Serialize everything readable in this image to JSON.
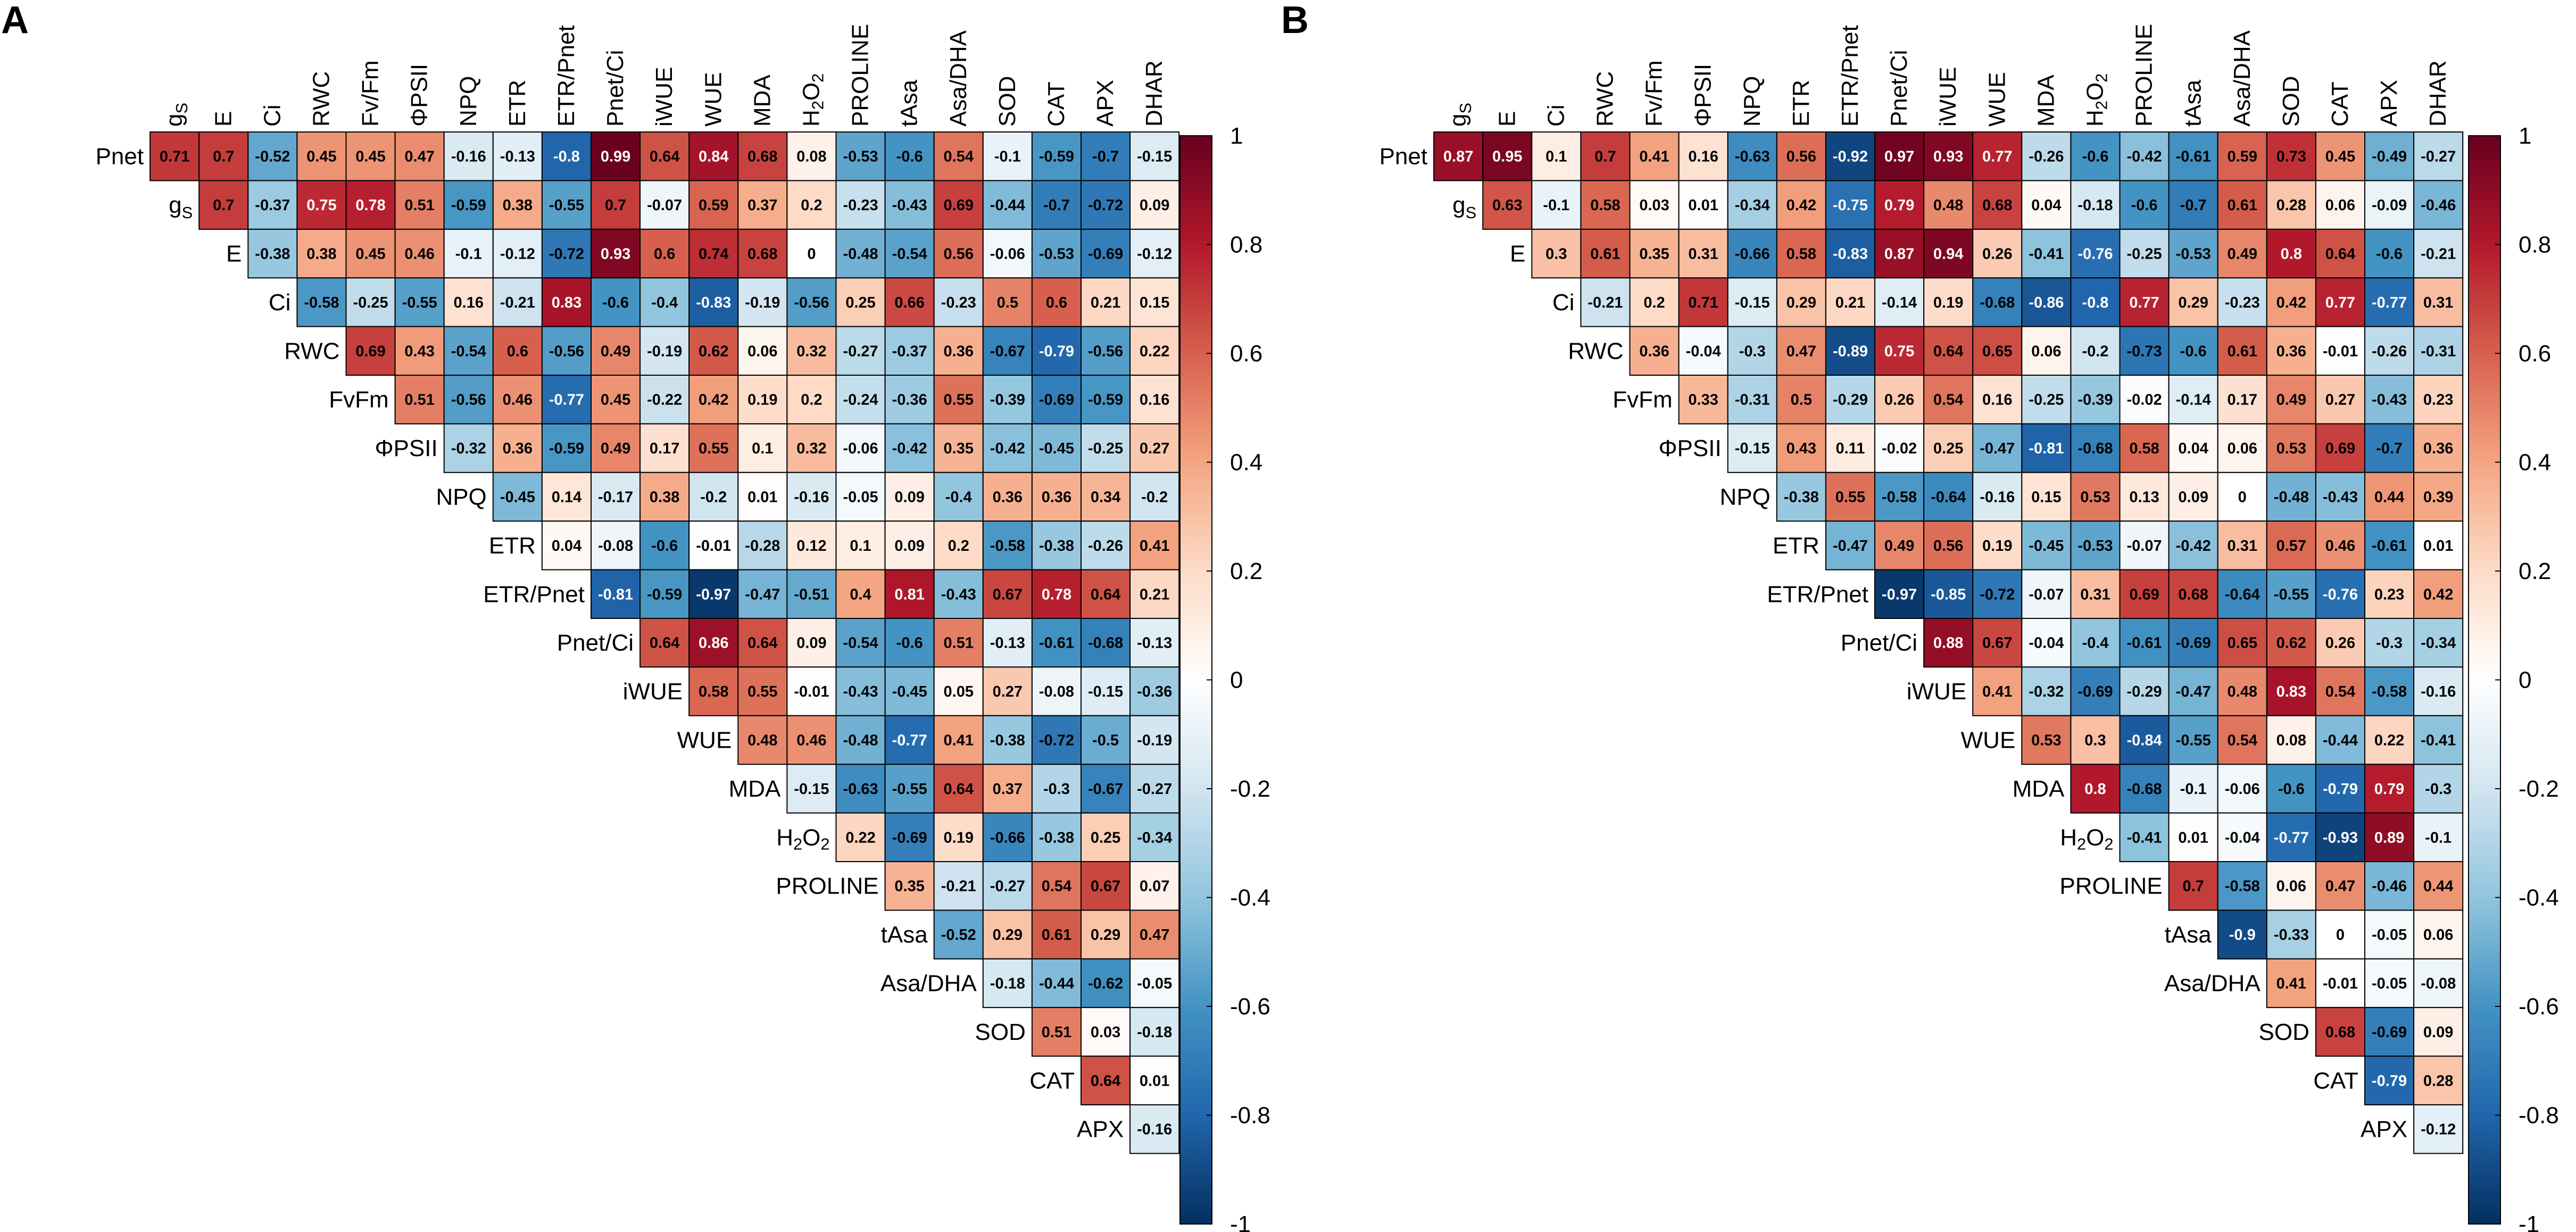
{
  "colors": {
    "negative": "#053061",
    "neutral": "#ffffff",
    "positive": "#67001f",
    "scale_stops": [
      "#053061",
      "#2166ac",
      "#4393c3",
      "#92c5de",
      "#d1e5f0",
      "#ffffff",
      "#fddbc7",
      "#f4a582",
      "#d6604d",
      "#b2182b",
      "#67001f"
    ]
  },
  "chart_data": [
    {
      "type": "heatmap",
      "panel_label": "A",
      "col_labels": [
        "g_S",
        "E",
        "Ci",
        "RWC",
        "Fv/Fm",
        "ΦPSII",
        "NPQ",
        "ETR",
        "ETR/Pnet",
        "Pnet/Ci",
        "iWUE",
        "WUE",
        "MDA",
        "H2O2",
        "PROLINE",
        "tAsa",
        "Asa/DHA",
        "SOD",
        "CAT",
        "APX",
        "DHAR"
      ],
      "row_labels": [
        "Pnet",
        "g_S",
        "E",
        "Ci",
        "RWC",
        "FvFm",
        "ΦPSII",
        "NPQ",
        "ETR",
        "ETR/Pnet",
        "Pnet/Ci",
        "iWUE",
        "WUE",
        "MDA",
        "H2O2",
        "PROLINE",
        "tAsa",
        "Asa/DHA",
        "SOD",
        "CAT",
        "APX"
      ],
      "values": [
        [
          0.71,
          0.7,
          -0.52,
          0.45,
          0.45,
          0.47,
          -0.16,
          -0.13,
          -0.8,
          0.99,
          0.64,
          0.84,
          0.68,
          0.08,
          -0.53,
          -0.6,
          0.54,
          -0.1,
          -0.59,
          -0.7,
          -0.15
        ],
        [
          0.7,
          -0.37,
          0.75,
          0.78,
          0.51,
          -0.59,
          0.38,
          -0.55,
          0.7,
          -0.07,
          0.59,
          0.37,
          0.2,
          -0.23,
          -0.43,
          0.69,
          -0.44,
          -0.7,
          -0.72,
          0.09
        ],
        [
          -0.38,
          0.38,
          0.45,
          0.46,
          -0.1,
          -0.12,
          -0.72,
          0.93,
          0.6,
          0.74,
          0.68,
          0,
          -0.48,
          -0.54,
          0.56,
          -0.06,
          -0.53,
          -0.69,
          -0.12
        ],
        [
          -0.58,
          -0.25,
          -0.55,
          0.16,
          -0.21,
          0.83,
          -0.6,
          -0.4,
          -0.83,
          -0.19,
          -0.56,
          0.25,
          0.66,
          -0.23,
          0.5,
          0.6,
          0.21,
          0.15
        ],
        [
          0.69,
          0.43,
          -0.54,
          0.6,
          -0.56,
          0.49,
          -0.19,
          0.62,
          0.06,
          0.32,
          -0.27,
          -0.37,
          0.36,
          -0.67,
          -0.79,
          -0.56,
          0.22
        ],
        [
          0.51,
          -0.56,
          0.46,
          -0.77,
          0.45,
          -0.22,
          0.42,
          0.19,
          0.2,
          -0.24,
          -0.36,
          0.55,
          -0.39,
          -0.69,
          -0.59,
          0.16
        ],
        [
          -0.32,
          0.36,
          -0.59,
          0.49,
          0.17,
          0.55,
          0.1,
          0.32,
          -0.06,
          -0.42,
          0.35,
          -0.42,
          -0.45,
          -0.25,
          0.27
        ],
        [
          -0.45,
          0.14,
          -0.17,
          0.38,
          -0.2,
          0.01,
          -0.16,
          -0.05,
          0.09,
          -0.4,
          0.36,
          0.36,
          0.34,
          -0.2
        ],
        [
          0.04,
          -0.08,
          -0.6,
          -0.01,
          -0.28,
          0.12,
          0.1,
          0.09,
          0.2,
          -0.58,
          -0.38,
          -0.26,
          0.41
        ],
        [
          -0.81,
          -0.59,
          -0.97,
          -0.47,
          -0.51,
          0.4,
          0.81,
          -0.43,
          0.67,
          0.78,
          0.64,
          0.21
        ],
        [
          0.64,
          0.86,
          0.64,
          0.09,
          -0.54,
          -0.6,
          0.51,
          -0.13,
          -0.61,
          -0.68,
          -0.13
        ],
        [
          0.58,
          0.55,
          -0.01,
          -0.43,
          -0.45,
          0.05,
          0.27,
          -0.08,
          -0.15,
          -0.36
        ],
        [
          0.48,
          0.46,
          -0.48,
          -0.77,
          0.41,
          -0.38,
          -0.72,
          -0.5,
          -0.19
        ],
        [
          -0.15,
          -0.63,
          -0.55,
          0.64,
          0.37,
          -0.3,
          -0.67,
          -0.27
        ],
        [
          0.22,
          -0.69,
          0.19,
          -0.66,
          -0.38,
          0.25,
          -0.34
        ],
        [
          0.35,
          -0.21,
          -0.27,
          0.54,
          0.67,
          0.07
        ],
        [
          -0.52,
          0.29,
          0.61,
          0.29,
          0.47
        ],
        [
          -0.18,
          -0.44,
          -0.62,
          -0.05
        ],
        [
          0.51,
          0.03,
          -0.18
        ],
        [
          0.64,
          0.01
        ],
        [
          -0.16
        ]
      ],
      "color_range": [
        -1,
        1
      ],
      "colorbar_ticks": [
        "1",
        "0.8",
        "0.6",
        "0.4",
        "0.2",
        "0",
        "-0.2",
        "-0.4",
        "-0.6",
        "-0.8",
        "-1"
      ]
    },
    {
      "type": "heatmap",
      "panel_label": "B",
      "col_labels": [
        "g_S",
        "E",
        "Ci",
        "RWC",
        "Fv/Fm",
        "ΦPSII",
        "NPQ",
        "ETR",
        "ETR/Pnet",
        "Pnet/Ci",
        "iWUE",
        "WUE",
        "MDA",
        "H2O2",
        "PROLINE",
        "tAsa",
        "Asa/DHA",
        "SOD",
        "CAT",
        "APX",
        "DHAR"
      ],
      "row_labels": [
        "Pnet",
        "g_S",
        "E",
        "Ci",
        "RWC",
        "FvFm",
        "ΦPSII",
        "NPQ",
        "ETR",
        "ETR/Pnet",
        "Pnet/Ci",
        "iWUE",
        "WUE",
        "MDA",
        "H2O2",
        "PROLINE",
        "tAsa",
        "Asa/DHA",
        "SOD",
        "CAT",
        "APX"
      ],
      "values": [
        [
          0.87,
          0.95,
          0.1,
          0.7,
          0.41,
          0.16,
          -0.63,
          0.56,
          -0.92,
          0.97,
          0.93,
          0.77,
          -0.26,
          -0.6,
          -0.42,
          -0.61,
          0.59,
          0.73,
          0.45,
          -0.49,
          -0.27
        ],
        [
          0.63,
          -0.1,
          0.58,
          0.03,
          0.01,
          -0.34,
          0.42,
          -0.75,
          0.79,
          0.48,
          0.68,
          0.04,
          -0.18,
          -0.6,
          -0.7,
          0.61,
          0.28,
          0.06,
          -0.09,
          -0.46
        ],
        [
          0.3,
          0.61,
          0.35,
          0.31,
          -0.66,
          0.58,
          -0.83,
          0.87,
          0.94,
          0.26,
          -0.41,
          -0.76,
          -0.25,
          -0.53,
          0.49,
          0.8,
          0.64,
          -0.6,
          -0.21
        ],
        [
          -0.21,
          0.2,
          0.71,
          -0.15,
          0.29,
          0.21,
          -0.14,
          0.19,
          -0.68,
          -0.86,
          -0.8,
          0.77,
          0.29,
          -0.23,
          0.42,
          0.77,
          -0.77,
          0.31
        ],
        [
          0.36,
          -0.04,
          -0.3,
          0.47,
          -0.89,
          0.75,
          0.64,
          0.65,
          0.06,
          -0.2,
          -0.73,
          -0.6,
          0.61,
          0.36,
          -0.01,
          -0.26,
          -0.31
        ],
        [
          0.33,
          -0.31,
          0.5,
          -0.29,
          0.26,
          0.54,
          0.16,
          -0.25,
          -0.39,
          -0.02,
          -0.14,
          0.17,
          0.49,
          0.27,
          -0.43,
          0.23
        ],
        [
          -0.15,
          0.43,
          0.11,
          -0.02,
          0.25,
          -0.47,
          -0.81,
          -0.68,
          0.58,
          0.04,
          0.06,
          0.53,
          0.69,
          -0.7,
          0.36
        ],
        [
          -0.38,
          0.55,
          -0.58,
          -0.64,
          -0.16,
          0.15,
          0.53,
          0.13,
          0.09,
          0,
          -0.48,
          -0.43,
          0.44,
          0.39
        ],
        [
          -0.47,
          0.49,
          0.56,
          0.19,
          -0.45,
          -0.53,
          -0.07,
          -0.42,
          0.31,
          0.57,
          0.46,
          -0.61,
          0.01
        ],
        [
          -0.97,
          -0.85,
          -0.72,
          -0.07,
          0.31,
          0.69,
          0.68,
          -0.64,
          -0.55,
          -0.76,
          0.23,
          0.42
        ],
        [
          0.88,
          0.67,
          -0.04,
          -0.4,
          -0.61,
          -0.69,
          0.65,
          0.62,
          0.26,
          -0.3,
          -0.34
        ],
        [
          0.41,
          -0.32,
          -0.69,
          -0.29,
          -0.47,
          0.48,
          0.83,
          0.54,
          -0.58,
          -0.16
        ],
        [
          0.53,
          0.3,
          -0.84,
          -0.55,
          0.54,
          0.08,
          -0.44,
          0.22,
          -0.41
        ],
        [
          0.8,
          -0.68,
          -0.1,
          -0.06,
          -0.6,
          -0.79,
          0.79,
          -0.3
        ],
        [
          -0.41,
          0.01,
          -0.04,
          -0.77,
          -0.93,
          0.89,
          -0.1
        ],
        [
          0.7,
          -0.58,
          0.06,
          0.47,
          -0.46,
          0.44
        ],
        [
          -0.9,
          -0.33,
          0,
          -0.05,
          0.06
        ],
        [
          0.41,
          -0.01,
          -0.05,
          -0.08
        ],
        [
          0.68,
          -0.69,
          0.09
        ],
        [
          -0.79,
          0.28
        ],
        [
          -0.12
        ]
      ],
      "color_range": [
        -1,
        1
      ],
      "colorbar_ticks": [
        "1",
        "0.8",
        "0.6",
        "0.4",
        "0.2",
        "0",
        "-0.2",
        "-0.4",
        "-0.6",
        "-0.8",
        "-1"
      ]
    }
  ]
}
